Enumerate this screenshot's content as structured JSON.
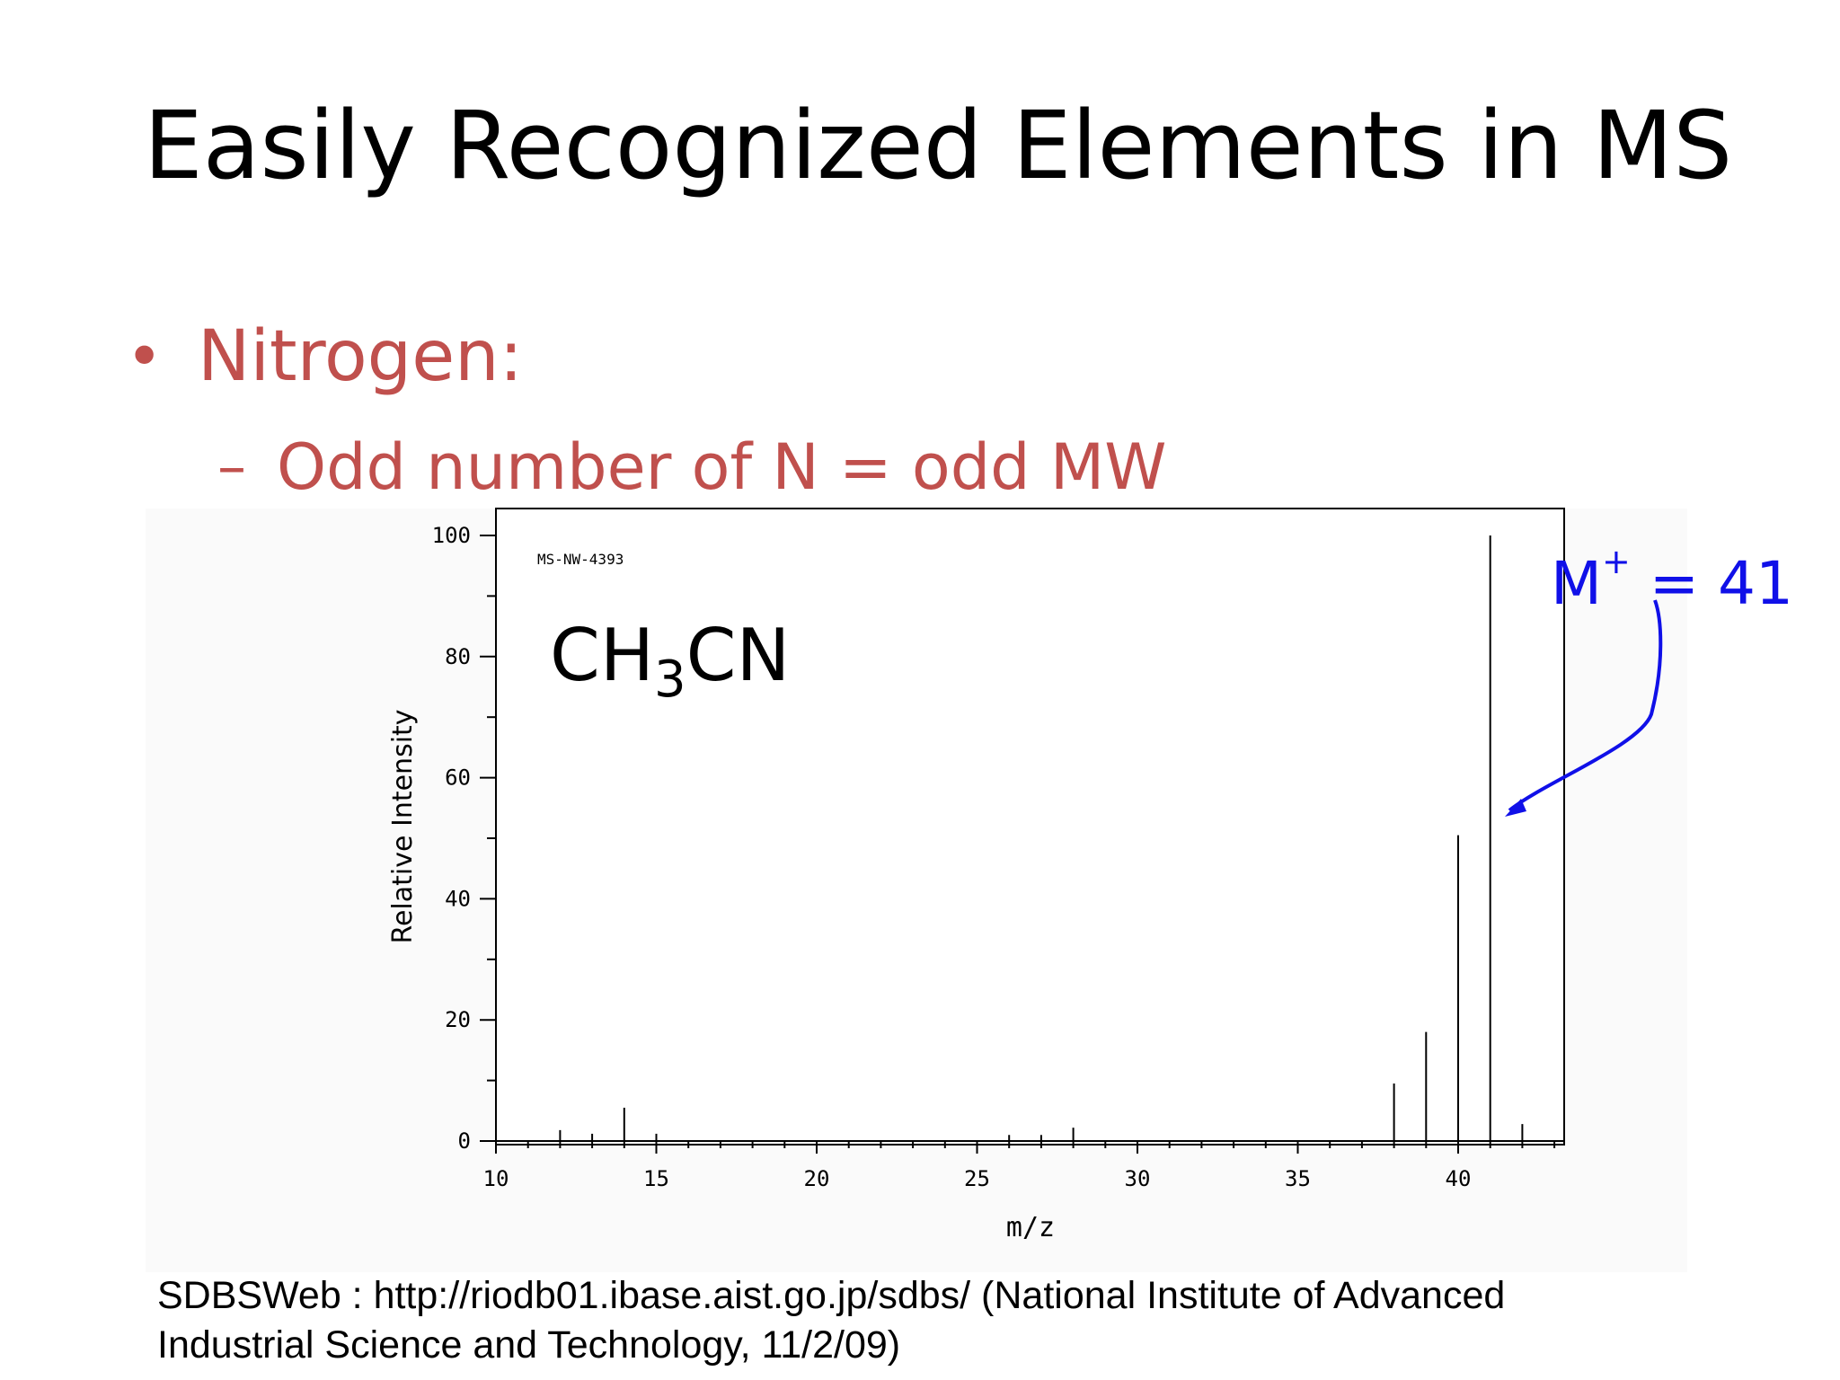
{
  "slide": {
    "title": "Easily Recognized Elements in MS",
    "bullet": {
      "marker": "•",
      "text": "Nitrogen:"
    },
    "sub_bullet": {
      "marker": "–",
      "text": "Odd number of N = odd MW"
    },
    "citation": [
      "SDBSWeb : http://riodb01.ibase.aist.go.jp/sdbs/ (National Institute of Advanced",
      "Industrial Science and Technology, 11/2/09)"
    ]
  },
  "annotations": {
    "formula": {
      "main": "CH",
      "subscript": "3",
      "tail": "CN"
    },
    "molecular_ion": {
      "base": "M",
      "superscript": "+",
      "rest": " = 41",
      "target_mz": 41
    },
    "annotation_color": "#1010e8"
  },
  "chart_data": {
    "type": "bar",
    "spectrum_id": "MS-NW-4393",
    "xlabel": "m/z",
    "ylabel": "Relative Intensity",
    "xlim": [
      10,
      43
    ],
    "ylim": [
      0,
      100
    ],
    "x_ticks": [
      10,
      15,
      20,
      25,
      30,
      35,
      40
    ],
    "y_ticks": [
      0,
      20,
      40,
      60,
      80,
      100
    ],
    "peaks": [
      {
        "mz": 12,
        "intensity": 1.8
      },
      {
        "mz": 13,
        "intensity": 1.2
      },
      {
        "mz": 14,
        "intensity": 5.5
      },
      {
        "mz": 15,
        "intensity": 1.2
      },
      {
        "mz": 26,
        "intensity": 1.0
      },
      {
        "mz": 27,
        "intensity": 1.0
      },
      {
        "mz": 28,
        "intensity": 2.2
      },
      {
        "mz": 38,
        "intensity": 9.5
      },
      {
        "mz": 39,
        "intensity": 18
      },
      {
        "mz": 40,
        "intensity": 50.5
      },
      {
        "mz": 41,
        "intensity": 100
      },
      {
        "mz": 42,
        "intensity": 2.8
      }
    ]
  }
}
